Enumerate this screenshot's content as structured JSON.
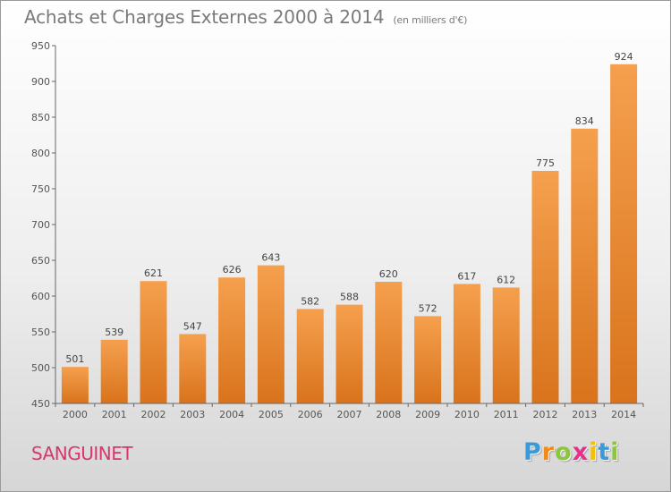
{
  "header": {
    "title": "Achats et Charges Externes 2000 à 2014",
    "subtitle": "(en milliers d'€)"
  },
  "footer": {
    "commune": "SANGUINET",
    "logo_text": "Proxiti",
    "logo_colors": [
      "#3a9ad9",
      "#f08a1c",
      "#8cc63f",
      "#e8308a",
      "#f5c000",
      "#3a9ad9",
      "#8cc63f"
    ]
  },
  "chart_data": {
    "type": "bar",
    "title": "Achats et Charges Externes 2000 à 2014",
    "subtitle": "(en milliers d'€)",
    "xlabel": "",
    "ylabel": "",
    "categories": [
      "2000",
      "2001",
      "2002",
      "2003",
      "2004",
      "2005",
      "2006",
      "2007",
      "2008",
      "2009",
      "2010",
      "2011",
      "2012",
      "2013",
      "2014"
    ],
    "values": [
      501,
      539,
      621,
      547,
      626,
      643,
      582,
      588,
      620,
      572,
      617,
      612,
      775,
      834,
      924
    ],
    "ylim": [
      450,
      950
    ],
    "yticks": [
      450,
      500,
      550,
      600,
      650,
      700,
      750,
      800,
      850,
      900,
      950
    ],
    "grid": false,
    "bar_color_top": "#f5a04e",
    "bar_color_bottom": "#d9731c"
  }
}
